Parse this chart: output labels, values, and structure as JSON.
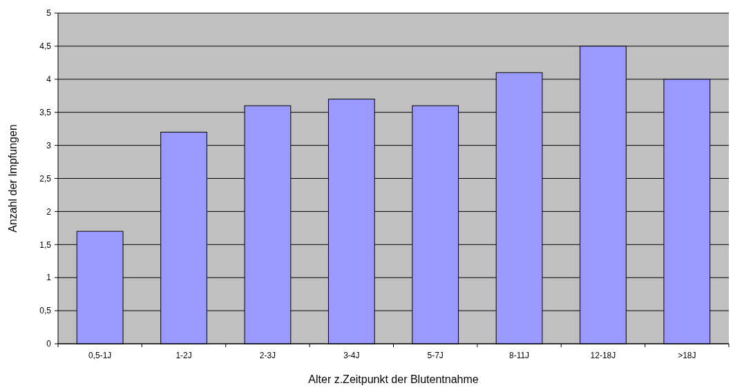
{
  "chart_data": {
    "type": "bar",
    "xlabel": "Alter z.Zeitpunkt der Blutentnahme",
    "ylabel": "Anzahl der Impfungen",
    "categories": [
      "0,5-1J",
      "1-2J",
      "2-3J",
      "3-4J",
      "5-7J",
      "8-11J",
      "12-18J",
      ">18J"
    ],
    "values": [
      1.7,
      3.2,
      3.6,
      3.7,
      3.6,
      4.1,
      4.5,
      4.0
    ],
    "color": "#9999ff",
    "ylim": [
      0,
      5
    ],
    "yticks": [
      0,
      {
        "value": 0.5,
        "label": "0,5"
      },
      1,
      {
        "value": 1.5,
        "label": "1,5"
      },
      2,
      {
        "value": 2.5,
        "label": "2,5"
      },
      3,
      {
        "value": 3.5,
        "label": "3,5"
      },
      4,
      {
        "value": 4.5,
        "label": "4,5"
      },
      5
    ],
    "grid": "y"
  }
}
